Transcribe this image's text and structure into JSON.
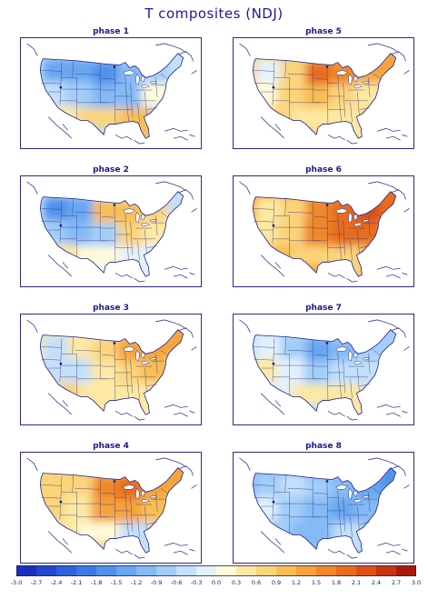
{
  "title": "T composites (NDJ)",
  "panels": [
    {
      "label": "phase 1",
      "values": [
        -1.3,
        -1.5,
        -1.8,
        -1.2,
        -0.8,
        -0.6,
        -0.4,
        -0.8,
        -1.1,
        -1.0,
        0.2,
        0.5,
        0.6,
        0.9
      ]
    },
    {
      "label": "phase 2",
      "values": [
        -1.6,
        -1.4,
        0.9,
        1.1,
        0.6,
        -0.5,
        -0.7,
        -1.2,
        -0.9,
        0.6,
        0.4,
        0.3,
        0.2,
        -0.3
      ]
    },
    {
      "label": "phase 3",
      "values": [
        -0.4,
        0.4,
        0.8,
        1.3,
        1.4,
        1.2,
        -0.6,
        -0.5,
        0.4,
        0.7,
        0.9,
        0.6,
        0.5,
        0.5
      ]
    },
    {
      "label": "phase 4",
      "values": [
        0.6,
        0.8,
        1.6,
        2.0,
        1.4,
        1.2,
        0.7,
        0.3,
        1.3,
        1.2,
        0.9,
        0.4,
        0.1,
        -0.5
      ]
    },
    {
      "label": "phase 5",
      "values": [
        -0.3,
        0.8,
        1.9,
        1.6,
        1.3,
        1.2,
        0.0,
        0.6,
        0.9,
        0.8,
        0.5,
        0.7,
        0.5,
        0.5
      ]
    },
    {
      "label": "phase 6",
      "values": [
        0.4,
        0.6,
        1.6,
        1.9,
        2.1,
        1.8,
        0.3,
        0.7,
        1.7,
        2.0,
        1.9,
        1.0,
        0.6,
        0.7
      ]
    },
    {
      "label": "phase 7",
      "values": [
        -0.3,
        -0.8,
        -1.3,
        -1.1,
        -0.9,
        -0.8,
        0.3,
        -0.2,
        -0.7,
        -0.6,
        -0.5,
        -0.3,
        0.4,
        0.3
      ]
    },
    {
      "label": "phase 8",
      "values": [
        -0.7,
        -0.6,
        -0.9,
        -1.1,
        -1.3,
        -1.6,
        -0.3,
        -0.8,
        -1.2,
        -1.4,
        -1.1,
        -0.9,
        -1.0,
        -0.5
      ]
    }
  ],
  "colorbar": {
    "labels": [
      "-3.0",
      "-2.7",
      "-2.4",
      "-2.1",
      "-1.8",
      "-1.5",
      "-1.2",
      "-0.9",
      "-0.6",
      "-0.3",
      "0.0",
      "0.3",
      "0.6",
      "0.9",
      "1.2",
      "1.5",
      "1.8",
      "2.1",
      "2.4",
      "2.7",
      "3.0"
    ],
    "colors": [
      "#1c2fb8",
      "#2447cc",
      "#2c62db",
      "#3a7ae4",
      "#4f91ec",
      "#68a6f1",
      "#84baf5",
      "#a2cdf8",
      "#c3e0fa",
      "#e3f1fd",
      "#fffbd9",
      "#fde9a3",
      "#fbd47a",
      "#f8bd55",
      "#f5a33a",
      "#f0882b",
      "#e86c1f",
      "#dc4f16",
      "#c8340f",
      "#a81a0c"
    ]
  }
}
